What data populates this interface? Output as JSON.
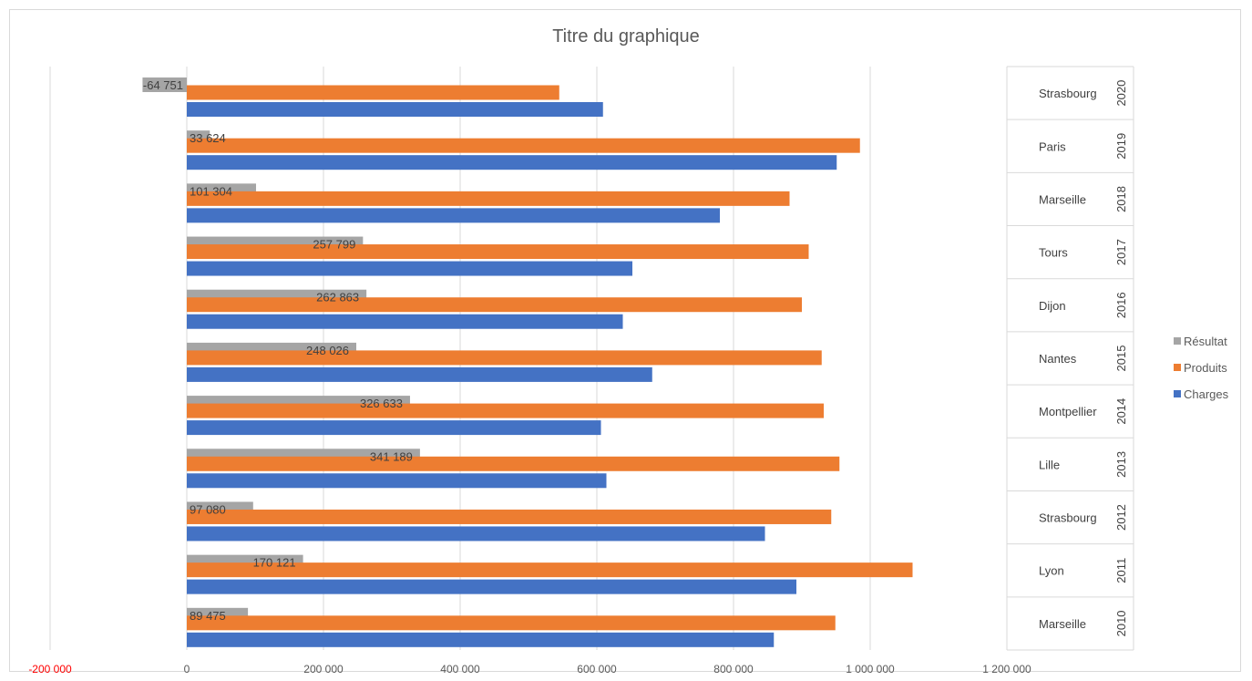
{
  "chart_data": {
    "type": "bar",
    "orientation": "horizontal",
    "title": "Titre du graphique",
    "xlim": [
      -200000,
      1200000
    ],
    "x_ticks": [
      -200000,
      0,
      200000,
      400000,
      600000,
      800000,
      1000000,
      1200000
    ],
    "x_tick_labels": [
      "-200 000",
      "0",
      "200 000",
      "400 000",
      "600 000",
      "800 000",
      "1 000 000",
      "1 200 000"
    ],
    "grid": true,
    "legend_position": "right",
    "categories": [
      {
        "year": "2020",
        "city": "Strasbourg"
      },
      {
        "year": "2019",
        "city": "Paris"
      },
      {
        "year": "2018",
        "city": "Marseille"
      },
      {
        "year": "2017",
        "city": "Tours"
      },
      {
        "year": "2016",
        "city": "Dijon"
      },
      {
        "year": "2015",
        "city": "Nantes"
      },
      {
        "year": "2014",
        "city": "Montpellier"
      },
      {
        "year": "2013",
        "city": "Lille"
      },
      {
        "year": "2012",
        "city": "Strasbourg"
      },
      {
        "year": "2011",
        "city": "Lyon"
      },
      {
        "year": "2010",
        "city": "Marseille"
      }
    ],
    "series": [
      {
        "name": "Résultat",
        "color": "#a5a5a5",
        "values": [
          -64751,
          33624,
          101304,
          257799,
          262863,
          248026,
          326633,
          341189,
          97080,
          170121,
          89475
        ],
        "labels": [
          "-64 751",
          "33 624",
          "101 304",
          "257 799",
          "262 863",
          "248 026",
          "326 633",
          "341 189",
          "97 080",
          "170 121",
          "89 475"
        ]
      },
      {
        "name": "Produits",
        "color": "#ed7d31",
        "values": [
          545000,
          985000,
          882000,
          910000,
          900000,
          929000,
          932000,
          955000,
          943000,
          1062000,
          949000
        ]
      },
      {
        "name": "Charges",
        "color": "#4472c4",
        "values": [
          609000,
          951000,
          780000,
          652000,
          638000,
          681000,
          606000,
          614000,
          846000,
          892000,
          859000
        ]
      }
    ],
    "legend": [
      "Résultat",
      "Produits",
      "Charges"
    ]
  }
}
